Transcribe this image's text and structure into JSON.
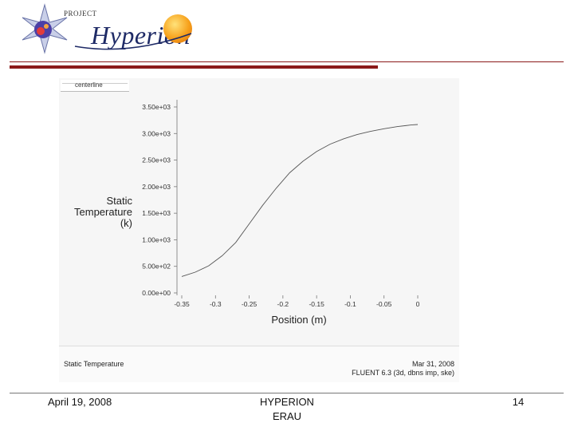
{
  "header": {
    "logo_project": "PROJECT",
    "logo_title": "Hyperion"
  },
  "chart_data": {
    "type": "line",
    "legend_label": "centerline",
    "xlabel": "Position (m)",
    "ylabel_lines": [
      "Static",
      "Temperature",
      "(k)"
    ],
    "xlim": [
      -0.35,
      0
    ],
    "ylim": [
      0,
      3500
    ],
    "x_ticks": [
      -0.35,
      -0.3,
      -0.25,
      -0.2,
      -0.15,
      -0.1,
      -0.05,
      0
    ],
    "x_tick_labels": [
      "-0.35",
      "-0.3",
      "-0.25",
      "-0.2",
      "-0.15",
      "-0.1",
      "-0.05",
      "0"
    ],
    "y_ticks": [
      0,
      500,
      1000,
      1500,
      2000,
      2500,
      3000,
      3500
    ],
    "y_tick_labels": [
      "0.00e+00",
      "5.00e+02",
      "1.00e+03",
      "1.50e+03",
      "2.00e+03",
      "2.50e+03",
      "3.00e+03",
      "3.50e+03"
    ],
    "series": [
      {
        "name": "centerline",
        "x": [
          -0.35,
          -0.33,
          -0.31,
          -0.29,
          -0.27,
          -0.25,
          -0.23,
          -0.21,
          -0.19,
          -0.17,
          -0.15,
          -0.13,
          -0.11,
          -0.09,
          -0.07,
          -0.05,
          -0.03,
          -0.01,
          0
        ],
        "y": [
          310,
          390,
          510,
          700,
          950,
          1300,
          1650,
          1970,
          2260,
          2480,
          2660,
          2800,
          2900,
          2980,
          3040,
          3090,
          3130,
          3160,
          3170
        ]
      }
    ],
    "info_left": "Static Temperature",
    "info_date": "Mar 31, 2008",
    "info_software": "FLUENT 6.3 (3d, dbns imp, ske)"
  },
  "footer": {
    "date": "April 19, 2008",
    "center_line1": "HYPERION",
    "center_line2": "ERAU",
    "page": "14"
  }
}
